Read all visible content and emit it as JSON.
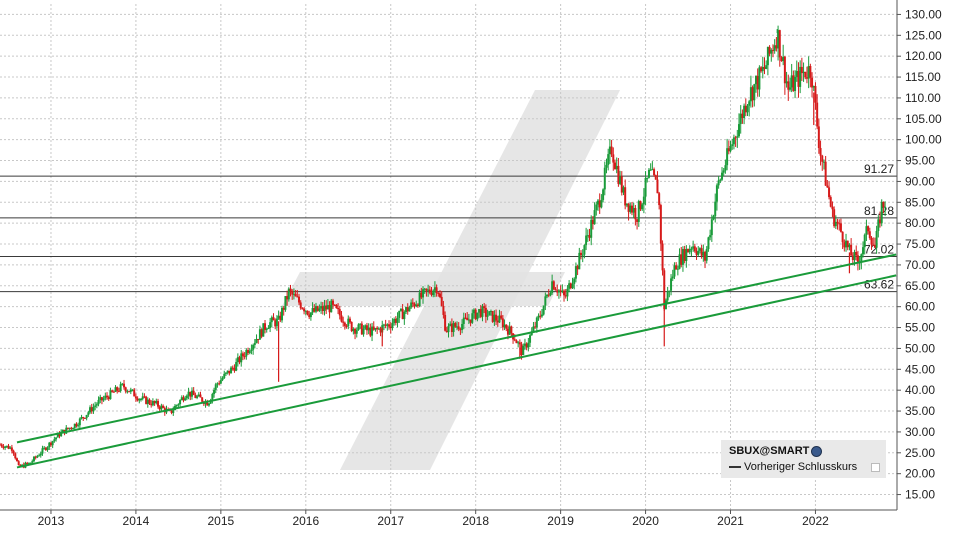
{
  "chart_data": {
    "type": "candlestick",
    "ticker": "SBUX@SMART",
    "yticks": [
      "15.00",
      "20.00",
      "25.00",
      "30.00",
      "35.00",
      "40.00",
      "45.00",
      "50.00",
      "55.00",
      "60.00",
      "65.00",
      "70.00",
      "75.00",
      "80.00",
      "85.00",
      "90.00",
      "95.00",
      "100.00",
      "105.00",
      "110.00",
      "115.00",
      "120.00",
      "125.00",
      "130.00"
    ],
    "ylim": [
      11.3,
      132.5
    ],
    "xticks": [
      "2013",
      "2014",
      "2015",
      "2016",
      "2017",
      "2018",
      "2019",
      "2020",
      "2021",
      "2022"
    ],
    "xlim": [
      2012.4,
      2022.96
    ],
    "grid": true,
    "horizontal_levels": [
      {
        "value": 91.27,
        "label": "91.27"
      },
      {
        "value": 81.28,
        "label": "81.28"
      },
      {
        "value": 72.02,
        "label": "72.02"
      },
      {
        "value": 63.62,
        "label": "63.62"
      }
    ],
    "trendlines": [
      {
        "x": [
          2012.6,
          2022.95
        ],
        "y": [
          27.5,
          72.5
        ],
        "color": "#1a9b3a"
      },
      {
        "x": [
          2012.6,
          2022.95
        ],
        "y": [
          21.5,
          67.5
        ],
        "color": "#1a9b3a"
      }
    ],
    "price_path": [
      [
        2012.4,
        27.0
      ],
      [
        2012.55,
        26.0
      ],
      [
        2012.62,
        21.5
      ],
      [
        2012.75,
        22.5
      ],
      [
        2012.9,
        25.5
      ],
      [
        2013.1,
        29.5
      ],
      [
        2013.3,
        32.0
      ],
      [
        2013.55,
        37.0
      ],
      [
        2013.85,
        41.0
      ],
      [
        2014.05,
        38.0
      ],
      [
        2014.25,
        36.5
      ],
      [
        2014.4,
        34.5
      ],
      [
        2014.6,
        39.5
      ],
      [
        2014.85,
        37.0
      ],
      [
        2014.95,
        41.5
      ],
      [
        2015.15,
        45.5
      ],
      [
        2015.4,
        52.0
      ],
      [
        2015.55,
        56.0
      ],
      [
        2015.68,
        56.5
      ],
      [
        2015.8,
        63.5
      ],
      [
        2016.05,
        58.5
      ],
      [
        2016.3,
        60.0
      ],
      [
        2016.55,
        55.0
      ],
      [
        2016.8,
        54.0
      ],
      [
        2017.0,
        56.0
      ],
      [
        2017.2,
        59.5
      ],
      [
        2017.4,
        63.0
      ],
      [
        2017.55,
        65.0
      ],
      [
        2017.65,
        54.5
      ],
      [
        2017.85,
        56.0
      ],
      [
        2018.05,
        59.0
      ],
      [
        2018.3,
        56.5
      ],
      [
        2018.45,
        53.0
      ],
      [
        2018.55,
        49.0
      ],
      [
        2018.75,
        57.5
      ],
      [
        2018.9,
        66.0
      ],
      [
        2019.05,
        62.0
      ],
      [
        2019.25,
        73.0
      ],
      [
        2019.45,
        85.0
      ],
      [
        2019.6,
        98.0
      ],
      [
        2019.75,
        86.0
      ],
      [
        2019.9,
        82.0
      ],
      [
        2020.05,
        92.0
      ],
      [
        2020.15,
        88.0
      ],
      [
        2020.22,
        60.0
      ],
      [
        2020.35,
        70.0
      ],
      [
        2020.55,
        75.0
      ],
      [
        2020.7,
        71.5
      ],
      [
        2020.85,
        89.0
      ],
      [
        2021.0,
        98.0
      ],
      [
        2021.2,
        110.0
      ],
      [
        2021.4,
        117.0
      ],
      [
        2021.55,
        125.5
      ],
      [
        2021.68,
        112.0
      ],
      [
        2021.85,
        116.0
      ],
      [
        2021.95,
        117.0
      ],
      [
        2022.05,
        98.0
      ],
      [
        2022.2,
        82.0
      ],
      [
        2022.3,
        78.0
      ],
      [
        2022.4,
        73.0
      ],
      [
        2022.5,
        70.5
      ],
      [
        2022.62,
        79.0
      ],
      [
        2022.7,
        74.0
      ],
      [
        2022.78,
        84.0
      ],
      [
        2022.83,
        85.5
      ]
    ],
    "spikes": [
      {
        "x": 2015.68,
        "low": 42.0
      },
      {
        "x": 2016.9,
        "low": 50.5
      },
      {
        "x": 2018.52,
        "low": 47.5
      },
      {
        "x": 2020.22,
        "low": 50.5
      },
      {
        "x": 2021.55,
        "high": 126.5
      },
      {
        "x": 2021.98,
        "low": 103.5
      },
      {
        "x": 2022.4,
        "low": 68.0
      }
    ]
  },
  "legend": {
    "title": "SBUX@SMART",
    "entry": "Vorheriger Schlusskurs"
  },
  "colors": {
    "up": "#1a9b3a",
    "down": "#d61a1a",
    "grid": "#c8c8c8",
    "level_line": "#3a3a3a",
    "watermark": "#e2e2e2"
  }
}
